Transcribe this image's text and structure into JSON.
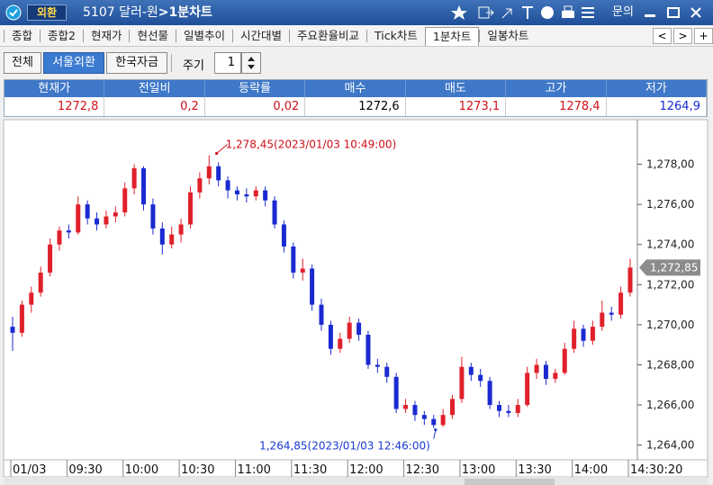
{
  "window": {
    "badge": "외환",
    "title": "5107 달러-원",
    "title_sep": ">",
    "subtitle": "1분차트",
    "help": "문의"
  },
  "tabs": [
    "종합",
    "종합2",
    "현재가",
    "현선물",
    "일별추이",
    "시간대별",
    "주요환율비교",
    "Tick차트",
    "1분차트",
    "일봉차트"
  ],
  "active_tab": 8,
  "tab_nav": [
    "<",
    ">",
    "+"
  ],
  "toolbar": {
    "buttons": [
      "전체",
      "서울외환",
      "한국자금"
    ],
    "active_button": 1,
    "period_label": "주기",
    "period_value": "1"
  },
  "quote": {
    "headers": [
      "현재가",
      "전일비",
      "등락률",
      "매수",
      "매도",
      "고가",
      "저가"
    ],
    "values": [
      "1272,8",
      "0,2",
      "0,02",
      "1272,6",
      "1273,1",
      "1278,4",
      "1264,9"
    ],
    "colors": [
      "#d0101a",
      "#d0101a",
      "#d0101a",
      "#000000",
      "#d0101a",
      "#d0101a",
      "#1a2ad0"
    ]
  },
  "chart_data": {
    "type": "candlestick",
    "x": [
      "09:00",
      "09:05",
      "09:10",
      "09:15",
      "09:20",
      "09:25",
      "09:30",
      "09:35",
      "09:40",
      "09:45",
      "09:50",
      "09:55",
      "10:00",
      "10:05",
      "10:10",
      "10:15",
      "10:20",
      "10:25",
      "10:30",
      "10:35",
      "10:40",
      "10:45",
      "10:50",
      "10:55",
      "11:00",
      "11:05",
      "11:10",
      "11:15",
      "11:20",
      "11:25",
      "11:30",
      "11:35",
      "11:40",
      "11:45",
      "11:50",
      "11:55",
      "12:00",
      "12:05",
      "12:10",
      "12:15",
      "12:20",
      "12:25",
      "12:30",
      "12:35",
      "12:40",
      "12:45",
      "12:50",
      "12:55",
      "13:00",
      "13:05",
      "13:10",
      "13:15",
      "13:20",
      "13:25",
      "13:30",
      "13:35",
      "13:40",
      "13:45",
      "13:50",
      "13:55",
      "14:00",
      "14:05",
      "14:10",
      "14:15",
      "14:20",
      "14:25",
      "14:30"
    ],
    "open": [
      1269.9,
      1269.6,
      1271.0,
      1271.6,
      1272.6,
      1274.0,
      1274.7,
      1274.6,
      1276.0,
      1275.3,
      1275.0,
      1275.4,
      1275.6,
      1276.8,
      1277.8,
      1276.0,
      1274.8,
      1274.0,
      1274.5,
      1275.0,
      1276.6,
      1277.3,
      1277.9,
      1277.2,
      1276.7,
      1276.5,
      1276.4,
      1276.7,
      1276.2,
      1275.0,
      1273.9,
      1272.6,
      1272.8,
      1271.0,
      1270.0,
      1268.8,
      1269.3,
      1270.1,
      1269.5,
      1268.0,
      1267.9,
      1267.4,
      1265.8,
      1266.0,
      1265.5,
      1265.3,
      1265.0,
      1265.5,
      1266.3,
      1267.9,
      1267.5,
      1267.2,
      1266.0,
      1265.7,
      1265.6,
      1266.0,
      1267.6,
      1268.0,
      1267.3,
      1267.6,
      1268.8,
      1269.8,
      1269.2,
      1269.9,
      1270.6,
      1270.5,
      1271.6
    ],
    "high": [
      1270.4,
      1271.2,
      1271.9,
      1272.9,
      1274.3,
      1274.9,
      1275.0,
      1276.4,
      1276.2,
      1275.6,
      1275.7,
      1275.9,
      1277.1,
      1278.0,
      1277.9,
      1276.3,
      1275.1,
      1274.9,
      1275.3,
      1276.9,
      1277.6,
      1278.45,
      1278.1,
      1277.4,
      1276.9,
      1276.8,
      1276.9,
      1276.9,
      1276.4,
      1275.2,
      1274.1,
      1273.3,
      1273.0,
      1271.3,
      1270.2,
      1269.6,
      1270.4,
      1270.3,
      1269.7,
      1268.3,
      1268.1,
      1267.6,
      1266.3,
      1266.2,
      1265.7,
      1265.5,
      1265.8,
      1266.5,
      1268.4,
      1268.1,
      1267.8,
      1267.4,
      1266.2,
      1266.0,
      1266.3,
      1267.9,
      1268.3,
      1268.2,
      1267.8,
      1269.1,
      1270.2,
      1270.0,
      1270.2,
      1271.2,
      1270.9,
      1271.9,
      1273.3
    ],
    "low": [
      1268.7,
      1269.4,
      1270.6,
      1271.4,
      1272.4,
      1273.7,
      1274.3,
      1274.5,
      1275.0,
      1274.7,
      1274.8,
      1275.1,
      1275.4,
      1276.5,
      1275.7,
      1274.5,
      1273.5,
      1273.8,
      1274.1,
      1274.8,
      1276.3,
      1277.0,
      1276.9,
      1276.3,
      1276.2,
      1276.1,
      1276.2,
      1275.9,
      1274.8,
      1273.6,
      1272.3,
      1272.2,
      1270.7,
      1269.7,
      1268.5,
      1268.6,
      1269.1,
      1269.2,
      1267.8,
      1267.6,
      1267.1,
      1265.6,
      1265.6,
      1265.2,
      1265.0,
      1264.85,
      1264.9,
      1265.3,
      1266.1,
      1267.2,
      1266.9,
      1265.8,
      1265.4,
      1265.4,
      1265.4,
      1265.9,
      1267.3,
      1267.0,
      1267.1,
      1267.5,
      1268.6,
      1268.9,
      1269.0,
      1269.7,
      1270.2,
      1270.3,
      1271.4
    ],
    "close": [
      1269.6,
      1271.0,
      1271.6,
      1272.6,
      1274.0,
      1274.7,
      1274.6,
      1276.0,
      1275.3,
      1275.0,
      1275.4,
      1275.6,
      1276.8,
      1277.8,
      1276.0,
      1274.8,
      1274.0,
      1274.5,
      1275.0,
      1276.6,
      1277.3,
      1277.9,
      1277.2,
      1276.7,
      1276.5,
      1276.4,
      1276.7,
      1276.2,
      1275.0,
      1273.9,
      1272.6,
      1272.8,
      1271.0,
      1270.0,
      1268.8,
      1269.3,
      1270.1,
      1269.5,
      1268.0,
      1267.9,
      1267.4,
      1265.8,
      1266.0,
      1265.5,
      1265.3,
      1265.0,
      1265.5,
      1266.3,
      1267.9,
      1267.5,
      1267.2,
      1266.0,
      1265.7,
      1265.6,
      1266.0,
      1267.6,
      1268.0,
      1267.3,
      1267.6,
      1268.8,
      1269.8,
      1269.2,
      1269.9,
      1270.6,
      1270.5,
      1271.6,
      1272.85
    ],
    "up_color": "#e0202a",
    "down_color": "#1a2ad0",
    "xlim": [
      "09:00",
      "14:30"
    ],
    "xticks": [
      {
        "value": "09:00",
        "label": "01/03"
      },
      "09:30",
      "10:00",
      "10:30",
      "11:00",
      "11:30",
      "12:00",
      "12:30",
      "13:00",
      "13:30",
      "14:00",
      {
        "value": "14:30",
        "label": "14:30:20"
      }
    ],
    "ylim": [
      1263.4,
      1280
    ],
    "yticks": [
      {
        "value": 1264,
        "label": "1,264,00"
      },
      {
        "value": 1266,
        "label": "1,266,00"
      },
      {
        "value": 1268,
        "label": "1,268,00"
      },
      {
        "value": 1270,
        "label": "1,270,00"
      },
      {
        "value": 1272,
        "label": "1,272,00"
      },
      {
        "value": 1274,
        "label": "1,274,00"
      },
      {
        "value": 1276,
        "label": "1,276,00"
      },
      {
        "value": 1278,
        "label": "1,278,00"
      }
    ],
    "last_price": {
      "value": 1272.85,
      "label": "1,272,85"
    },
    "annotations": [
      {
        "text": "1,278,45(2023/01/03 10:49:00)",
        "x": "10:49",
        "y": 1278.45,
        "color": "#d0101a"
      },
      {
        "text": "1,264,85(2023/01/03 12:46:00)",
        "x": "12:46",
        "y": 1264.85,
        "color": "#1a3ad0"
      }
    ]
  }
}
